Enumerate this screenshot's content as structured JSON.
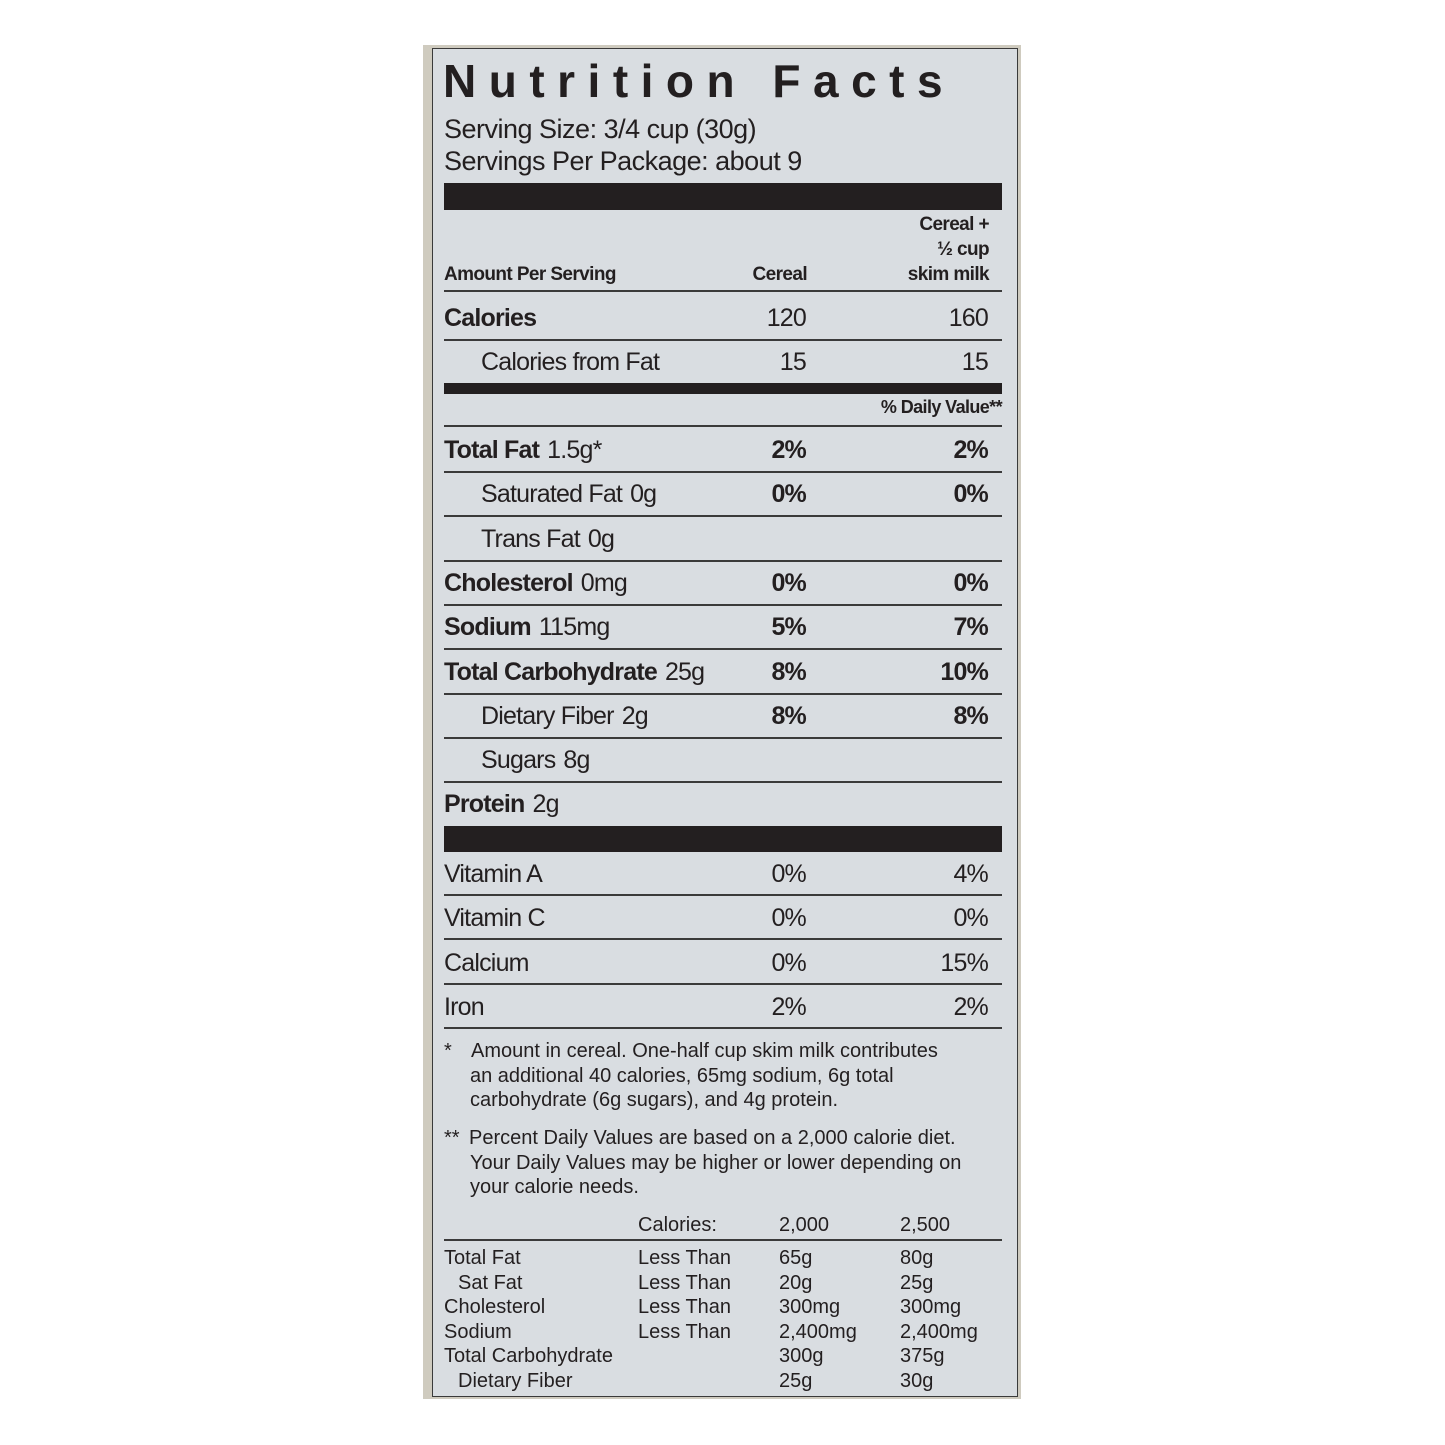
{
  "title": "Nutrition Facts",
  "serving_size": "Serving Size: 3/4 cup (30g)",
  "servings_per_package": "Servings Per Package: about 9",
  "header": {
    "amount_per_serving": "Amount Per Serving",
    "col_cereal": "Cereal",
    "col_milk_line1": "Cereal +",
    "col_milk_line2": "½ cup",
    "col_milk_line3": "skim milk"
  },
  "calories": {
    "label": "Calories",
    "cereal": "120",
    "milk": "160"
  },
  "calories_from_fat": {
    "label": "Calories from Fat",
    "cereal": "15",
    "milk": "15"
  },
  "daily_value_header": "% Daily Value**",
  "nutrients": [
    {
      "label": "Total Fat",
      "amount": "1.5g*",
      "cereal": "2%",
      "milk": "2%",
      "bold": true,
      "indent": false
    },
    {
      "label": "Saturated Fat",
      "amount": "0g",
      "cereal": "0%",
      "milk": "0%",
      "bold": false,
      "indent": true
    },
    {
      "label": "Trans Fat",
      "amount": "0g",
      "cereal": "",
      "milk": "",
      "bold": false,
      "indent": true
    },
    {
      "label": "Cholesterol",
      "amount": "0mg",
      "cereal": "0%",
      "milk": "0%",
      "bold": true,
      "indent": false
    },
    {
      "label": "Sodium",
      "amount": "115mg",
      "cereal": "5%",
      "milk": "7%",
      "bold": true,
      "indent": false
    },
    {
      "label": "Total Carbohydrate",
      "amount": "25g",
      "cereal": "8%",
      "milk": "10%",
      "bold": true,
      "indent": false
    },
    {
      "label": "Dietary Fiber",
      "amount": "2g",
      "cereal": "8%",
      "milk": "8%",
      "bold": false,
      "indent": true
    },
    {
      "label": "Sugars",
      "amount": "8g",
      "cereal": "",
      "milk": "",
      "bold": false,
      "indent": true
    },
    {
      "label": "Protein",
      "amount": "2g",
      "cereal": "",
      "milk": "",
      "bold": true,
      "indent": false
    }
  ],
  "vitamins": [
    {
      "label": "Vitamin A",
      "cereal": "0%",
      "milk": "4%"
    },
    {
      "label": "Vitamin C",
      "cereal": "0%",
      "milk": "0%"
    },
    {
      "label": "Calcium",
      "cereal": "0%",
      "milk": "15%"
    },
    {
      "label": "Iron",
      "cereal": "2%",
      "milk": "2%"
    }
  ],
  "footnote1": {
    "mark": "*",
    "lines": [
      "Amount in cereal. One-half cup skim milk contributes",
      "an additional 40 calories, 65mg sodium, 6g total",
      "carbohydrate (6g sugars), and 4g protein."
    ]
  },
  "footnote2": {
    "mark": "**",
    "lines": [
      "Percent Daily Values are based on a 2,000 calorie diet.",
      "Your Daily Values may be higher or lower depending on",
      "your calorie needs."
    ]
  },
  "dv_table": {
    "header": {
      "label": "Calories:",
      "col1": "2,000",
      "col2": "2,500"
    },
    "rows": [
      {
        "name": "Total Fat",
        "qual": "Less Than",
        "v1": "65g",
        "v2": "80g",
        "indent": false
      },
      {
        "name": "Sat Fat",
        "qual": "Less Than",
        "v1": "20g",
        "v2": "25g",
        "indent": true
      },
      {
        "name": "Cholesterol",
        "qual": "Less Than",
        "v1": "300mg",
        "v2": "300mg",
        "indent": false
      },
      {
        "name": "Sodium",
        "qual": "Less Than",
        "v1": "2,400mg",
        "v2": "2,400mg",
        "indent": false
      },
      {
        "name": "Total Carbohydrate",
        "qual": "",
        "v1": "300g",
        "v2": "375g",
        "indent": false
      },
      {
        "name": "Dietary Fiber",
        "qual": "",
        "v1": "25g",
        "v2": "30g",
        "indent": true
      }
    ]
  }
}
